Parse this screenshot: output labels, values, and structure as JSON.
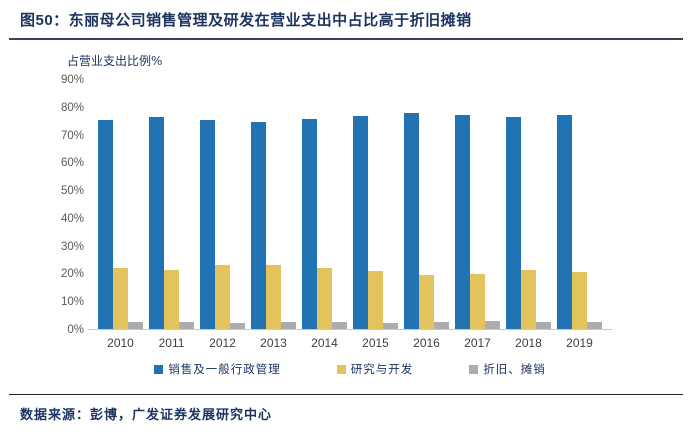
{
  "title": "图50：东丽母公司销售管理及研发在营业支出中占比高于折旧摊销",
  "footer": {
    "text": "数据来源：彭博，广发证券发展研究中心"
  },
  "colors": {
    "accent_navy": "#1d3461",
    "series_blue": "#2173b4",
    "series_yellow": "#e2c35d",
    "series_gray": "#acacac",
    "axis_line": "#c9c9c9",
    "tick_text": "#595959"
  },
  "chart_data": {
    "type": "bar",
    "title": "",
    "ylabel": "占营业支出比例%",
    "xlabel": "",
    "categories": [
      "2010",
      "2011",
      "2012",
      "2013",
      "2014",
      "2015",
      "2016",
      "2017",
      "2018",
      "2019"
    ],
    "series": [
      {
        "name": "销售及一般行政管理",
        "color": "#2173b4",
        "values": [
          75.5,
          76.5,
          75.5,
          75.0,
          76.0,
          77.0,
          78.0,
          77.5,
          76.5,
          77.5
        ]
      },
      {
        "name": "研究与开发",
        "color": "#e2c35d",
        "values": [
          22.0,
          21.5,
          23.0,
          23.0,
          22.0,
          21.0,
          19.5,
          20.0,
          21.5,
          20.5
        ]
      },
      {
        "name": "折旧、摊销",
        "color": "#acacac",
        "values": [
          2.5,
          2.5,
          2.3,
          2.4,
          2.5,
          2.3,
          2.6,
          3.0,
          2.4,
          2.6
        ]
      }
    ],
    "ylim": [
      0,
      90
    ],
    "ytick_labels": [
      "90%",
      "80%",
      "70%",
      "60%",
      "50%",
      "40%",
      "30%",
      "20%",
      "10%",
      "0%"
    ],
    "grid": false,
    "legend_position": "bottom"
  }
}
